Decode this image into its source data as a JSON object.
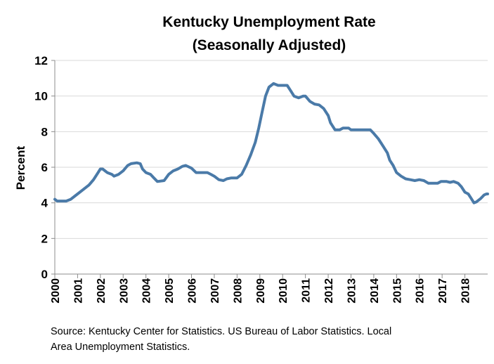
{
  "chart_data": {
    "type": "line",
    "title": "Kentucky Unemployment Rate",
    "subtitle": "(Seasonally Adjusted)",
    "ylabel": "Percent",
    "xlabel": "",
    "ylim": [
      0,
      12
    ],
    "yticks": [
      "0",
      "2",
      "4",
      "6",
      "8",
      "10",
      "12"
    ],
    "xticks": [
      "2000",
      "2001",
      "2002",
      "2003",
      "2004",
      "2005",
      "2006",
      "2007",
      "2008",
      "2009",
      "2010",
      "2011",
      "2012",
      "2013",
      "2014",
      "2015",
      "2016",
      "2017",
      "2018"
    ],
    "xlim": [
      2000,
      2019
    ],
    "grid": "horizontal",
    "line_color": "#4a7aa8",
    "series": [
      {
        "points": [
          [
            2000.0,
            4.2
          ],
          [
            2000.1,
            4.1
          ],
          [
            2000.5,
            4.1
          ],
          [
            2000.7,
            4.2
          ],
          [
            2000.9,
            4.4
          ],
          [
            2001.2,
            4.7
          ],
          [
            2001.5,
            5.0
          ],
          [
            2001.7,
            5.3
          ],
          [
            2001.9,
            5.7
          ],
          [
            2002.0,
            5.9
          ],
          [
            2002.1,
            5.9
          ],
          [
            2002.3,
            5.7
          ],
          [
            2002.5,
            5.6
          ],
          [
            2002.6,
            5.5
          ],
          [
            2002.8,
            5.6
          ],
          [
            2003.0,
            5.8
          ],
          [
            2003.2,
            6.1
          ],
          [
            2003.35,
            6.2
          ],
          [
            2003.6,
            6.25
          ],
          [
            2003.75,
            6.2
          ],
          [
            2003.85,
            5.9
          ],
          [
            2004.0,
            5.7
          ],
          [
            2004.2,
            5.6
          ],
          [
            2004.35,
            5.4
          ],
          [
            2004.5,
            5.2
          ],
          [
            2004.8,
            5.25
          ],
          [
            2005.0,
            5.6
          ],
          [
            2005.2,
            5.8
          ],
          [
            2005.4,
            5.9
          ],
          [
            2005.6,
            6.05
          ],
          [
            2005.75,
            6.1
          ],
          [
            2006.0,
            5.95
          ],
          [
            2006.2,
            5.7
          ],
          [
            2006.5,
            5.7
          ],
          [
            2006.7,
            5.7
          ],
          [
            2006.85,
            5.6
          ],
          [
            2007.0,
            5.5
          ],
          [
            2007.2,
            5.3
          ],
          [
            2007.4,
            5.25
          ],
          [
            2007.55,
            5.35
          ],
          [
            2007.75,
            5.4
          ],
          [
            2008.0,
            5.4
          ],
          [
            2008.2,
            5.6
          ],
          [
            2008.4,
            6.1
          ],
          [
            2008.6,
            6.7
          ],
          [
            2008.8,
            7.4
          ],
          [
            2008.95,
            8.2
          ],
          [
            2009.1,
            9.1
          ],
          [
            2009.25,
            10.0
          ],
          [
            2009.4,
            10.5
          ],
          [
            2009.6,
            10.7
          ],
          [
            2009.8,
            10.6
          ],
          [
            2010.0,
            10.6
          ],
          [
            2010.2,
            10.6
          ],
          [
            2010.35,
            10.3
          ],
          [
            2010.5,
            10.0
          ],
          [
            2010.7,
            9.9
          ],
          [
            2010.9,
            10.0
          ],
          [
            2011.0,
            10.0
          ],
          [
            2011.2,
            9.7
          ],
          [
            2011.4,
            9.55
          ],
          [
            2011.6,
            9.5
          ],
          [
            2011.8,
            9.3
          ],
          [
            2012.0,
            8.9
          ],
          [
            2012.1,
            8.5
          ],
          [
            2012.3,
            8.1
          ],
          [
            2012.5,
            8.1
          ],
          [
            2012.65,
            8.2
          ],
          [
            2012.9,
            8.2
          ],
          [
            2013.0,
            8.1
          ],
          [
            2013.3,
            8.1
          ],
          [
            2013.6,
            8.1
          ],
          [
            2013.85,
            8.1
          ],
          [
            2014.0,
            7.9
          ],
          [
            2014.2,
            7.6
          ],
          [
            2014.4,
            7.2
          ],
          [
            2014.6,
            6.8
          ],
          [
            2014.7,
            6.4
          ],
          [
            2014.85,
            6.1
          ],
          [
            2015.0,
            5.7
          ],
          [
            2015.2,
            5.5
          ],
          [
            2015.4,
            5.35
          ],
          [
            2015.6,
            5.3
          ],
          [
            2015.8,
            5.25
          ],
          [
            2016.0,
            5.3
          ],
          [
            2016.2,
            5.25
          ],
          [
            2016.4,
            5.1
          ],
          [
            2016.6,
            5.1
          ],
          [
            2016.8,
            5.1
          ],
          [
            2016.95,
            5.2
          ],
          [
            2017.2,
            5.2
          ],
          [
            2017.35,
            5.15
          ],
          [
            2017.5,
            5.2
          ],
          [
            2017.7,
            5.1
          ],
          [
            2017.85,
            4.9
          ],
          [
            2018.0,
            4.6
          ],
          [
            2018.15,
            4.5
          ],
          [
            2018.25,
            4.3
          ],
          [
            2018.4,
            4.0
          ],
          [
            2018.5,
            4.05
          ],
          [
            2018.7,
            4.25
          ],
          [
            2018.85,
            4.45
          ],
          [
            2018.95,
            4.5
          ],
          [
            2019.0,
            4.5
          ]
        ]
      }
    ]
  },
  "source": {
    "line1": "Source: Kentucky Center for Statistics. US Bureau of Labor Statistics. Local",
    "line2": "Area Unemployment Statistics."
  }
}
